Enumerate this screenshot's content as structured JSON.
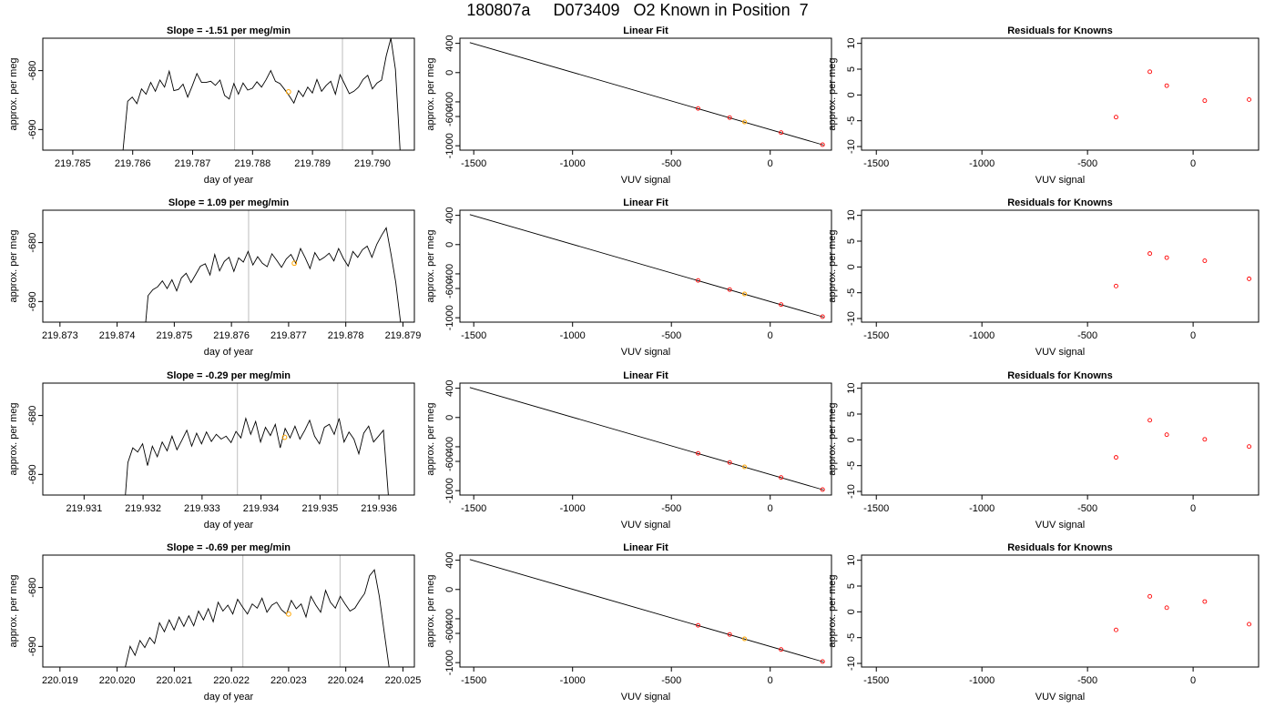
{
  "page": {
    "title": "180807a     D073409   O2 Known in Position  7"
  },
  "colors": {
    "trace": "#000000",
    "gridline": "#bebebe",
    "highlight": "#ffa500",
    "residual_point": "#ff0000",
    "fit_line": "#000000"
  },
  "chart_data": [
    {
      "type": "line",
      "name": "row1-timeseries",
      "title": "Slope =  -1.51  per meg/min",
      "xlabel": "day of year",
      "ylabel": "approx. per meg",
      "xlim": [
        219.7845,
        219.7907
      ],
      "ylim": [
        -693.5,
        -674.5
      ],
      "xticks": [
        219.785,
        219.786,
        219.787,
        219.788,
        219.789,
        219.79
      ],
      "xtick_labels": [
        "219.785",
        "219.786",
        "219.787",
        "219.788",
        "219.789",
        "219.790"
      ],
      "yticks": [
        -690,
        -680
      ],
      "ytick_labels": [
        "-690",
        "-680"
      ],
      "vlines": [
        219.7877,
        219.7895
      ],
      "marker": {
        "x": 219.7886,
        "y": -683.6
      },
      "trace": {
        "x_start": 219.7858,
        "x_end": 219.7905,
        "start_y": -693.5,
        "end_y": -693.5,
        "values": [
          -693.5,
          -685.2,
          -684.5,
          -685.6,
          -683.1,
          -684.0,
          -682.0,
          -683.5,
          -681.6,
          -682.8,
          -680.1,
          -683.4,
          -683.2,
          -682.3,
          -684.5,
          -682.6,
          -680.5,
          -682.0,
          -682.0,
          -681.8,
          -682.5,
          -681.6,
          -684.2,
          -684.8,
          -682.2,
          -684.0,
          -682.1,
          -683.3,
          -683.0,
          -681.9,
          -682.8,
          -681.5,
          -680.0,
          -681.8,
          -682.2,
          -683.2,
          -684.3,
          -685.5,
          -683.4,
          -684.4,
          -682.8,
          -683.8,
          -681.5,
          -683.5,
          -682.5,
          -681.8,
          -684.0,
          -680.7,
          -682.3,
          -683.9,
          -683.5,
          -682.8,
          -681.5,
          -680.8,
          -683.1,
          -682.1,
          -681.6,
          -677.5,
          -674.5,
          -679.8,
          -693.5
        ]
      }
    },
    {
      "type": "scatter",
      "name": "row1-linear-fit",
      "title": "Linear Fit",
      "xlabel": "VUV signal",
      "ylabel": "approx. per meg",
      "xlim": [
        -1570,
        310
      ],
      "ylim": [
        -1060,
        470
      ],
      "xticks": [
        -1500,
        -1000,
        -500,
        0
      ],
      "xtick_labels": [
        "-1500",
        "-1000",
        "-500",
        "0"
      ],
      "yticks": [
        -1000,
        -600,
        -400,
        0,
        400
      ],
      "ytick_labels": [
        "-1000",
        "-600",
        "-400",
        "0",
        "400"
      ],
      "line": {
        "x": [
          -1520,
          270
        ],
        "y": [
          410,
          -990
        ]
      },
      "points": [
        {
          "x": -365,
          "y": -490
        },
        {
          "x": -205,
          "y": -615
        },
        {
          "x": 55,
          "y": -820
        },
        {
          "x": 265,
          "y": -985
        }
      ],
      "highlight_points": [
        {
          "x": -130,
          "y": -675
        }
      ]
    },
    {
      "type": "scatter",
      "name": "row1-residuals",
      "title": "Residuals for Knowns",
      "xlabel": "VUV signal",
      "ylabel": "approx. per meg",
      "xlim": [
        -1570,
        310
      ],
      "ylim": [
        -10.7,
        11
      ],
      "xticks": [
        -1500,
        -1000,
        -500,
        0
      ],
      "xtick_labels": [
        "-1500",
        "-1000",
        "-500",
        "0"
      ],
      "yticks": [
        -10,
        -5,
        0,
        5,
        10
      ],
      "ytick_labels": [
        "-10",
        "-5",
        "0",
        "5",
        "10"
      ],
      "points": [
        {
          "x": -365,
          "y": -4.3
        },
        {
          "x": -205,
          "y": 4.5
        },
        {
          "x": -125,
          "y": 1.8
        },
        {
          "x": 55,
          "y": -1.1
        },
        {
          "x": 265,
          "y": -0.9
        }
      ]
    },
    {
      "type": "line",
      "name": "row2-timeseries",
      "title": "Slope =  1.09  per meg/min",
      "xlabel": "day of year",
      "ylabel": "approx. per meg",
      "xlim": [
        219.8727,
        219.8792
      ],
      "ylim": [
        -693.5,
        -674.5
      ],
      "xticks": [
        219.873,
        219.874,
        219.875,
        219.876,
        219.877,
        219.878,
        219.879
      ],
      "xtick_labels": [
        "219.873",
        "219.874",
        "219.875",
        "219.876",
        "219.877",
        "219.878",
        "219.879"
      ],
      "yticks": [
        -690,
        -680
      ],
      "ytick_labels": [
        "-690",
        "-680"
      ],
      "vlines": [
        219.8763,
        219.878
      ],
      "marker": {
        "x": 219.8771,
        "y": -683.5
      },
      "trace": {
        "x_start": 219.8745,
        "x_end": 219.879,
        "start_y": -693.5,
        "end_y": -693.5,
        "values": [
          -689.0,
          -688.0,
          -687.5,
          -686.5,
          -687.8,
          -686.3,
          -688.2,
          -686.0,
          -685.2,
          -686.8,
          -685.4,
          -684.0,
          -683.6,
          -685.5,
          -682.0,
          -684.8,
          -683.2,
          -682.5,
          -684.9,
          -682.6,
          -683.3,
          -681.5,
          -683.8,
          -682.4,
          -683.5,
          -684.1,
          -681.9,
          -683.0,
          -684.2,
          -682.8,
          -682.0,
          -683.5,
          -681.0,
          -682.6,
          -684.4,
          -681.7,
          -683.0,
          -682.5,
          -681.8,
          -683.1,
          -681.0,
          -682.7,
          -684.0,
          -681.5,
          -682.5,
          -681.2,
          -680.6,
          -682.5,
          -680.3,
          -678.8,
          -677.5,
          -682.0,
          -686.8,
          -693.5
        ]
      }
    },
    {
      "type": "scatter",
      "name": "row2-linear-fit",
      "title": "Linear Fit",
      "xlabel": "VUV signal",
      "ylabel": "approx. per meg",
      "xlim": [
        -1570,
        310
      ],
      "ylim": [
        -1060,
        470
      ],
      "xticks": [
        -1500,
        -1000,
        -500,
        0
      ],
      "xtick_labels": [
        "-1500",
        "-1000",
        "-500",
        "0"
      ],
      "yticks": [
        -1000,
        -600,
        -400,
        0,
        400
      ],
      "ytick_labels": [
        "-1000",
        "-600",
        "-400",
        "0",
        "400"
      ],
      "line": {
        "x": [
          -1520,
          270
        ],
        "y": [
          410,
          -990
        ]
      },
      "points": [
        {
          "x": -365,
          "y": -490
        },
        {
          "x": -205,
          "y": -615
        },
        {
          "x": 55,
          "y": -820
        },
        {
          "x": 265,
          "y": -985
        }
      ],
      "highlight_points": [
        {
          "x": -130,
          "y": -675
        }
      ]
    },
    {
      "type": "scatter",
      "name": "row2-residuals",
      "title": "Residuals for Knowns",
      "xlabel": "VUV signal",
      "ylabel": "approx. per meg",
      "xlim": [
        -1570,
        310
      ],
      "ylim": [
        -10.7,
        11
      ],
      "xticks": [
        -1500,
        -1000,
        -500,
        0
      ],
      "xtick_labels": [
        "-1500",
        "-1000",
        "-500",
        "0"
      ],
      "yticks": [
        -10,
        -5,
        0,
        5,
        10
      ],
      "ytick_labels": [
        "-10",
        "-5",
        "0",
        "5",
        "10"
      ],
      "points": [
        {
          "x": -365,
          "y": -3.7
        },
        {
          "x": -205,
          "y": 2.6
        },
        {
          "x": -125,
          "y": 1.8
        },
        {
          "x": 55,
          "y": 1.2
        },
        {
          "x": 265,
          "y": -2.3
        }
      ]
    },
    {
      "type": "line",
      "name": "row3-timeseries",
      "title": "Slope =  -0.29  per meg/min",
      "xlabel": "day of year",
      "ylabel": "approx. per meg",
      "xlim": [
        219.9303,
        219.9366
      ],
      "ylim": [
        -693.5,
        -674.5
      ],
      "xticks": [
        219.931,
        219.932,
        219.933,
        219.934,
        219.935,
        219.936
      ],
      "xtick_labels": [
        "219.931",
        "219.932",
        "219.933",
        "219.934",
        "219.935",
        "219.936"
      ],
      "yticks": [
        -690,
        -680
      ],
      "ytick_labels": [
        "-690",
        "-680"
      ],
      "vlines": [
        219.9336,
        219.9353
      ],
      "marker": {
        "x": 219.9344,
        "y": -683.7
      },
      "trace": {
        "x_start": 219.9317,
        "x_end": 219.9362,
        "start_y": -693.5,
        "end_y": -693.5,
        "values": [
          -688.0,
          -685.5,
          -686.2,
          -684.8,
          -688.5,
          -685.2,
          -687.0,
          -684.5,
          -686.0,
          -683.5,
          -685.8,
          -684.2,
          -682.5,
          -685.2,
          -683.0,
          -684.8,
          -682.8,
          -684.4,
          -683.2,
          -684.0,
          -683.5,
          -684.6,
          -682.7,
          -683.8,
          -680.5,
          -683.2,
          -681.0,
          -684.5,
          -682.0,
          -683.4,
          -681.5,
          -685.5,
          -682.2,
          -683.8,
          -681.8,
          -684.0,
          -682.5,
          -680.8,
          -683.5,
          -684.8,
          -682.0,
          -681.5,
          -683.2,
          -680.5,
          -684.5,
          -682.8,
          -684.0,
          -686.5,
          -683.0,
          -681.8,
          -684.5,
          -683.5,
          -682.5,
          -693.5
        ]
      }
    },
    {
      "type": "scatter",
      "name": "row3-linear-fit",
      "title": "Linear Fit",
      "xlabel": "VUV signal",
      "ylabel": "approx. per meg",
      "xlim": [
        -1570,
        310
      ],
      "ylim": [
        -1060,
        470
      ],
      "xticks": [
        -1500,
        -1000,
        -500,
        0
      ],
      "xtick_labels": [
        "-1500",
        "-1000",
        "-500",
        "0"
      ],
      "yticks": [
        -1000,
        -600,
        -400,
        0,
        400
      ],
      "ytick_labels": [
        "-1000",
        "-600",
        "-400",
        "0",
        "400"
      ],
      "line": {
        "x": [
          -1520,
          270
        ],
        "y": [
          410,
          -990
        ]
      },
      "points": [
        {
          "x": -365,
          "y": -490
        },
        {
          "x": -205,
          "y": -615
        },
        {
          "x": 55,
          "y": -820
        },
        {
          "x": 265,
          "y": -985
        }
      ],
      "highlight_points": [
        {
          "x": -130,
          "y": -675
        }
      ]
    },
    {
      "type": "scatter",
      "name": "row3-residuals",
      "title": "Residuals for Knowns",
      "xlabel": "VUV signal",
      "ylabel": "approx. per meg",
      "xlim": [
        -1570,
        310
      ],
      "ylim": [
        -10.7,
        11
      ],
      "xticks": [
        -1500,
        -1000,
        -500,
        0
      ],
      "xtick_labels": [
        "-1500",
        "-1000",
        "-500",
        "0"
      ],
      "yticks": [
        -10,
        -5,
        0,
        5,
        10
      ],
      "ytick_labels": [
        "-10",
        "-5",
        "0",
        "5",
        "10"
      ],
      "points": [
        {
          "x": -365,
          "y": -3.4
        },
        {
          "x": -205,
          "y": 3.8
        },
        {
          "x": -125,
          "y": 1.0
        },
        {
          "x": 55,
          "y": 0.1
        },
        {
          "x": 265,
          "y": -1.3
        }
      ]
    },
    {
      "type": "line",
      "name": "row4-timeseries",
      "title": "Slope =  -0.69  per meg/min",
      "xlabel": "day of year",
      "ylabel": "approx. per meg",
      "xlim": [
        220.0187,
        220.0252
      ],
      "ylim": [
        -693.5,
        -674.5
      ],
      "xticks": [
        220.019,
        220.02,
        220.021,
        220.022,
        220.023,
        220.024,
        220.025
      ],
      "xtick_labels": [
        "220.019",
        "220.020",
        "220.021",
        "220.022",
        "220.023",
        "220.024",
        "220.025"
      ],
      "yticks": [
        -690,
        -680
      ],
      "ytick_labels": [
        "-690",
        "-680"
      ],
      "vlines": [
        220.0222,
        220.0239
      ],
      "marker": {
        "x": 220.023,
        "y": -684.5
      },
      "trace": {
        "x_start": 220.0201,
        "x_end": 220.0248,
        "start_y": -693.5,
        "end_y": -693.5,
        "values": [
          -693.5,
          -690.0,
          -691.5,
          -689.0,
          -690.2,
          -688.5,
          -689.5,
          -686.0,
          -687.5,
          -685.5,
          -687.2,
          -685.0,
          -686.6,
          -684.8,
          -686.5,
          -684.0,
          -685.5,
          -683.6,
          -685.8,
          -682.5,
          -684.0,
          -683.0,
          -684.5,
          -682.0,
          -683.3,
          -684.5,
          -682.8,
          -683.5,
          -681.8,
          -684.2,
          -683.0,
          -682.5,
          -683.8,
          -684.5,
          -682.2,
          -683.6,
          -682.8,
          -685.0,
          -681.5,
          -683.0,
          -684.2,
          -680.5,
          -682.5,
          -683.5,
          -681.5,
          -682.8,
          -684.0,
          -683.5,
          -682.2,
          -681.0,
          -678.0,
          -677.0,
          -681.5,
          -687.5,
          -693.5
        ]
      }
    },
    {
      "type": "scatter",
      "name": "row4-linear-fit",
      "title": "Linear Fit",
      "xlabel": "VUV signal",
      "ylabel": "approx. per meg",
      "xlim": [
        -1570,
        310
      ],
      "ylim": [
        -1060,
        470
      ],
      "xticks": [
        -1500,
        -1000,
        -500,
        0
      ],
      "xtick_labels": [
        "-1500",
        "-1000",
        "-500",
        "0"
      ],
      "yticks": [
        -1000,
        -600,
        -400,
        0,
        400
      ],
      "ytick_labels": [
        "-1000",
        "-600",
        "-400",
        "0",
        "400"
      ],
      "line": {
        "x": [
          -1520,
          270
        ],
        "y": [
          410,
          -990
        ]
      },
      "points": [
        {
          "x": -365,
          "y": -490
        },
        {
          "x": -205,
          "y": -615
        },
        {
          "x": 55,
          "y": -820
        },
        {
          "x": 265,
          "y": -985
        }
      ],
      "highlight_points": [
        {
          "x": -130,
          "y": -675
        }
      ]
    },
    {
      "type": "scatter",
      "name": "row4-residuals",
      "title": "Residuals for Knowns",
      "xlabel": "VUV signal",
      "ylabel": "approx. per meg",
      "xlim": [
        -1570,
        310
      ],
      "ylim": [
        -10.7,
        11
      ],
      "xticks": [
        -1500,
        -1000,
        -500,
        0
      ],
      "xtick_labels": [
        "-1500",
        "-1000",
        "-500",
        "0"
      ],
      "yticks": [
        -10,
        -5,
        0,
        5,
        10
      ],
      "ytick_labels": [
        "-10",
        "-5",
        "0",
        "5",
        "10"
      ],
      "points": [
        {
          "x": -365,
          "y": -3.5
        },
        {
          "x": -205,
          "y": 3.0
        },
        {
          "x": -125,
          "y": 0.8
        },
        {
          "x": 55,
          "y": 2.0
        },
        {
          "x": 265,
          "y": -2.4
        }
      ]
    }
  ]
}
